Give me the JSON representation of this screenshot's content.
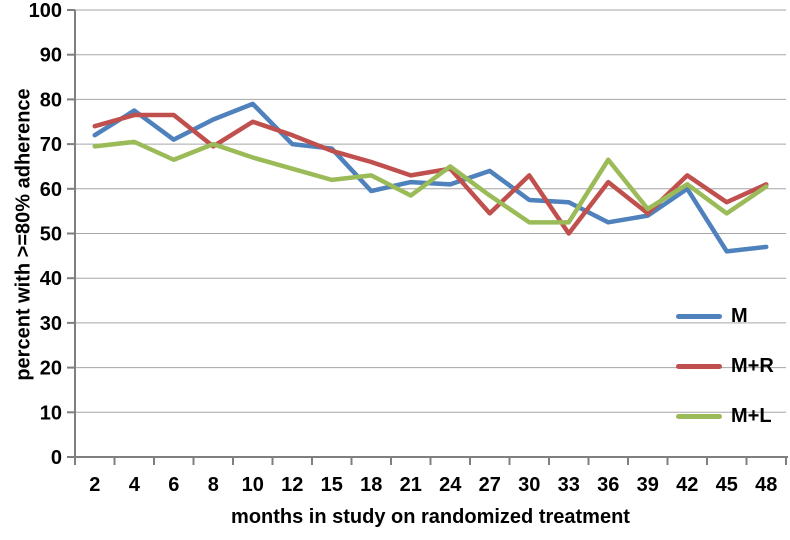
{
  "chart_data": {
    "type": "line",
    "title": "",
    "xlabel": "months in study on randomized treatment",
    "ylabel": "percent with >=80% adherence",
    "categories": [
      "2",
      "4",
      "6",
      "8",
      "10",
      "12",
      "15",
      "18",
      "21",
      "24",
      "27",
      "30",
      "33",
      "36",
      "39",
      "42",
      "45",
      "48"
    ],
    "ylim": [
      0,
      100
    ],
    "yticks": [
      0,
      10,
      20,
      30,
      40,
      50,
      60,
      70,
      80,
      90,
      100
    ],
    "grid": true,
    "legend_position": "right-middle",
    "series": [
      {
        "name": "M",
        "color": "#4F81BD",
        "values": [
          72,
          77.5,
          71,
          75.5,
          79,
          70,
          69,
          59.5,
          61.5,
          61,
          64,
          57.5,
          57,
          52.5,
          54,
          60,
          46,
          47
        ]
      },
      {
        "name": "M+R",
        "color": "#C0504D",
        "values": [
          74,
          76.5,
          76.5,
          69.5,
          75,
          72,
          68.5,
          66,
          63,
          64.5,
          54.5,
          63,
          50,
          61.5,
          54.5,
          63,
          57,
          61
        ]
      },
      {
        "name": "M+L",
        "color": "#9BBB59",
        "values": [
          69.5,
          70.5,
          66.5,
          70,
          67,
          64.5,
          62,
          63,
          58.5,
          65,
          58.5,
          52.5,
          52.5,
          66.5,
          55.5,
          61,
          54.5,
          60.5
        ]
      }
    ],
    "style": {
      "axis_color": "#7F7F7F",
      "gridline_color": "#A6A6A6",
      "text_color": "#000000",
      "line_width": 4.5
    }
  }
}
